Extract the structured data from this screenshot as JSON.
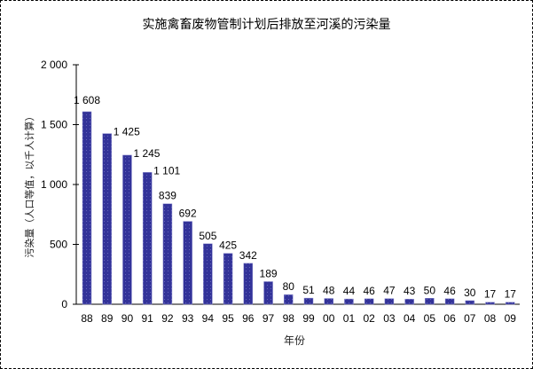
{
  "chart_data": {
    "type": "bar",
    "title": "实施禽畜废物管制计划后排放至河溪的污染量",
    "xlabel": "年份",
    "ylabel": "污染量（人口等值，以千人计算）",
    "ylim": [
      0,
      2000
    ],
    "yticks": [
      0,
      500,
      1000,
      1500,
      2000
    ],
    "ytick_labels": [
      "0",
      "500",
      "1 000",
      "1 500",
      "2 000"
    ],
    "grid": false,
    "legend": null,
    "categories": [
      "88",
      "89",
      "90",
      "91",
      "92",
      "93",
      "94",
      "95",
      "96",
      "97",
      "98",
      "99",
      "00",
      "01",
      "02",
      "03",
      "04",
      "05",
      "06",
      "07",
      "08",
      "09"
    ],
    "values": [
      1608,
      1425,
      1245,
      1101,
      839,
      692,
      505,
      425,
      342,
      189,
      80,
      51,
      48,
      44,
      46,
      47,
      43,
      50,
      46,
      30,
      17,
      17
    ],
    "value_labels": [
      "1 608",
      "1 425",
      "1 245",
      "1 101",
      "839",
      "692",
      "505",
      "425",
      "342",
      "189",
      "80",
      "51",
      "48",
      "44",
      "46",
      "47",
      "43",
      "50",
      "46",
      "30",
      "17",
      "17"
    ],
    "bar_color": "#333399"
  }
}
